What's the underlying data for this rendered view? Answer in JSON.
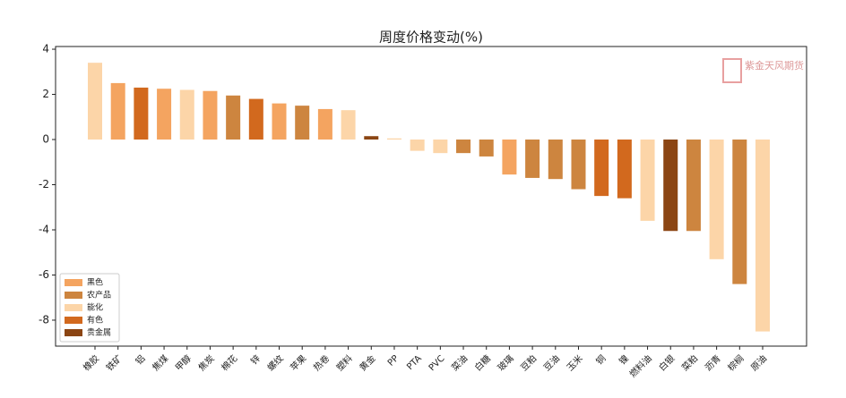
{
  "chart_data": {
    "type": "bar",
    "title": "周度价格变动(%)",
    "watermark": "紫金天风期货",
    "categories": [
      "橡胶",
      "铁矿",
      "铝",
      "焦煤",
      "甲醇",
      "焦炭",
      "棉花",
      "锌",
      "螺纹",
      "苹果",
      "热卷",
      "塑料",
      "黄金",
      "PP",
      "PTA",
      "PVC",
      "菜油",
      "白糖",
      "玻璃",
      "豆粕",
      "豆油",
      "玉米",
      "铜",
      "镍",
      "燃料油",
      "白银",
      "菜粕",
      "沥青",
      "棕榈",
      "原油"
    ],
    "series": [
      {
        "name": "黑色",
        "color": "#f4a460",
        "values": [
          null,
          2.5,
          null,
          2.25,
          null,
          2.15,
          null,
          null,
          1.6,
          null,
          1.35,
          null,
          null,
          null,
          null,
          null,
          null,
          null,
          -1.55,
          null,
          null,
          null,
          null,
          null,
          null,
          null,
          null,
          null,
          null,
          null
        ]
      },
      {
        "name": "农产品",
        "color": "#cd853f",
        "values": [
          null,
          null,
          null,
          null,
          null,
          null,
          1.95,
          null,
          null,
          1.5,
          null,
          null,
          null,
          null,
          null,
          null,
          -0.6,
          -0.75,
          null,
          -1.7,
          -1.75,
          -2.2,
          null,
          null,
          null,
          null,
          -4.05,
          null,
          -6.4,
          null
        ]
      },
      {
        "name": "能化",
        "color": "#fcd5a8",
        "values": [
          3.4,
          null,
          null,
          null,
          2.2,
          null,
          null,
          null,
          null,
          null,
          null,
          1.3,
          null,
          0.05,
          -0.5,
          -0.6,
          null,
          null,
          null,
          null,
          null,
          null,
          null,
          null,
          -3.6,
          null,
          null,
          -5.3,
          null,
          -8.5
        ]
      },
      {
        "name": "有色",
        "color": "#d2691e",
        "values": [
          null,
          null,
          2.3,
          null,
          null,
          null,
          null,
          1.8,
          null,
          null,
          null,
          null,
          null,
          null,
          null,
          null,
          null,
          null,
          null,
          null,
          null,
          null,
          -2.5,
          -2.6,
          null,
          null,
          null,
          null,
          null,
          null
        ]
      },
      {
        "name": "贵金属",
        "color": "#8b4513",
        "values": [
          null,
          null,
          null,
          null,
          null,
          null,
          null,
          null,
          null,
          null,
          null,
          null,
          0.15,
          null,
          null,
          null,
          null,
          null,
          null,
          null,
          null,
          null,
          null,
          null,
          null,
          -4.05,
          null,
          null,
          null,
          null
        ]
      }
    ],
    "ylim": [
      -9.15,
      4.12
    ],
    "yticks": [
      -8,
      -6,
      -4,
      -2,
      0,
      2,
      4
    ],
    "legend": "lower left"
  }
}
